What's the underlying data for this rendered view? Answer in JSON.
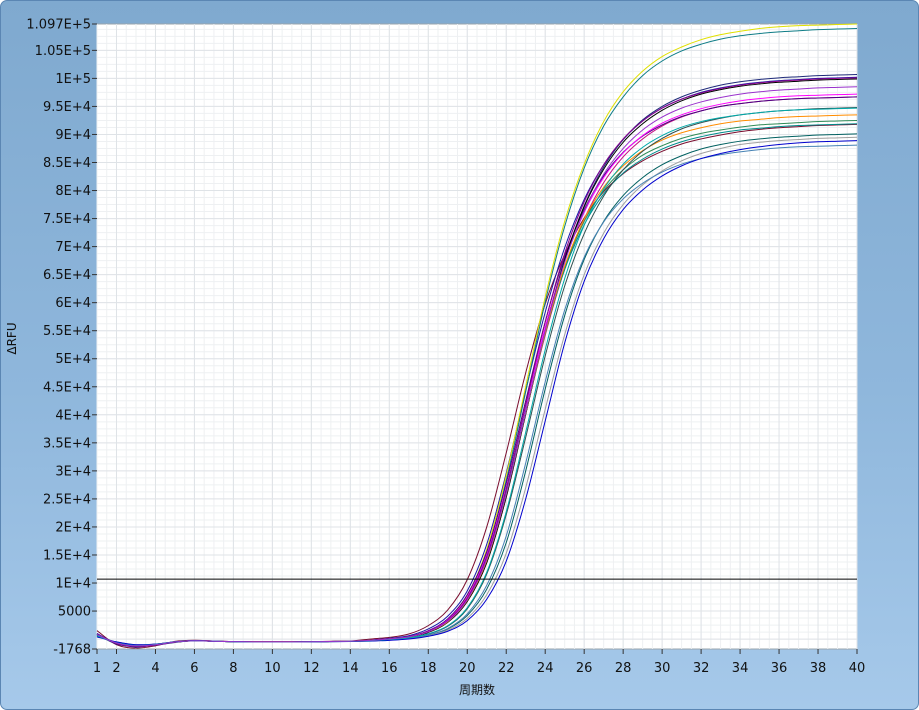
{
  "window": {
    "frame_color": "#7fa9cf"
  },
  "chart_data": {
    "type": "line",
    "title": "",
    "xlabel": "周期数",
    "ylabel": "ΔRFU",
    "xlim": [
      1,
      40
    ],
    "ylim": [
      -1768,
      109700
    ],
    "x_ticks": [
      1,
      2,
      4,
      6,
      8,
      10,
      12,
      14,
      16,
      18,
      20,
      22,
      24,
      26,
      28,
      30,
      32,
      34,
      36,
      38,
      40
    ],
    "x_tick_labels": [
      "1",
      "2",
      "4",
      "6",
      "8",
      "10",
      "12",
      "14",
      "16",
      "18",
      "20",
      "22",
      "24",
      "26",
      "28",
      "30",
      "32",
      "34",
      "36",
      "38",
      "40"
    ],
    "y_ticks": [
      -1768,
      5000,
      10000,
      15000,
      20000,
      25000,
      30000,
      35000,
      40000,
      45000,
      50000,
      55000,
      60000,
      65000,
      70000,
      75000,
      80000,
      85000,
      90000,
      95000,
      100000,
      105000,
      109700
    ],
    "y_tick_labels": [
      "-1768",
      "5000",
      "1E+4",
      "1.5E+4",
      "2E+4",
      "2.5E+4",
      "3E+4",
      "3.5E+4",
      "4E+4",
      "4.5E+4",
      "5E+4",
      "5.5E+4",
      "6E+4",
      "6.5E+4",
      "7E+4",
      "7.5E+4",
      "8E+4",
      "8.5E+4",
      "9E+4",
      "9.5E+4",
      "1E+5",
      "1.05E+5",
      "1.097E+5"
    ],
    "grid": true,
    "threshold": 10700,
    "x": [
      1,
      2,
      3,
      4,
      5,
      6,
      7,
      8,
      9,
      10,
      11,
      12,
      13,
      14,
      15,
      16,
      17,
      18,
      19,
      20,
      21,
      22,
      23,
      24,
      25,
      26,
      27,
      28,
      29,
      30,
      31,
      32,
      33,
      34,
      35,
      36,
      37,
      38,
      39,
      40
    ],
    "series": [
      {
        "color": "#7a0d2e",
        "values": [
          1500,
          -1000,
          -1600,
          -1200,
          -400,
          -200,
          -350,
          -450,
          -500,
          -500,
          -500,
          -450,
          -400,
          -350,
          0,
          300,
          900,
          2400,
          5200,
          10600,
          20000,
          33200,
          47500,
          59800,
          68600,
          75100,
          79800,
          83000,
          85300,
          87000,
          88300,
          89200,
          89900,
          90500,
          90900,
          91200,
          91400,
          91600,
          91700,
          91800
        ]
      },
      {
        "color": "#1a1aa8",
        "values": [
          1000,
          -800,
          -1400,
          -1000,
          -500,
          -300,
          -400,
          -450,
          -500,
          -500,
          -500,
          -480,
          -420,
          -380,
          -200,
          150,
          600,
          1800,
          4100,
          8600,
          16900,
          29600,
          44400,
          58300,
          69800,
          78400,
          84600,
          89100,
          92400,
          94700,
          96300,
          97500,
          98300,
          98900,
          99300,
          99600,
          99800,
          100000,
          100100,
          100200
        ]
      },
      {
        "color": "#1e2a7a",
        "values": [
          800,
          -900,
          -1300,
          -1100,
          -600,
          -300,
          -350,
          -450,
          -500,
          -500,
          -500,
          -470,
          -420,
          -380,
          -250,
          0,
          350,
          1200,
          3000,
          6700,
          13700,
          25400,
          40200,
          55000,
          67700,
          77300,
          84200,
          89100,
          92600,
          95000,
          96700,
          97900,
          98800,
          99400,
          99800,
          100100,
          100300,
          100500,
          100600,
          100700
        ]
      },
      {
        "color": "#c71585",
        "values": [
          600,
          -700,
          -1200,
          -900,
          -500,
          -250,
          -350,
          -450,
          -500,
          -500,
          -500,
          -460,
          -410,
          -370,
          -220,
          50,
          450,
          1400,
          3300,
          7200,
          14400,
          26000,
          40300,
          54200,
          66000,
          74900,
          81400,
          86000,
          89200,
          91500,
          93100,
          94200,
          95000,
          95500,
          95900,
          96200,
          96400,
          96500,
          96600,
          96700
        ]
      },
      {
        "color": "#e0e000",
        "values": [
          500,
          -600,
          -1100,
          -950,
          -550,
          -300,
          -380,
          -460,
          -500,
          -500,
          -500,
          -480,
          -430,
          -390,
          -240,
          30,
          420,
          1400,
          3500,
          7800,
          16000,
          29200,
          45100,
          61000,
          74500,
          84700,
          92300,
          97600,
          101300,
          103900,
          105600,
          106900,
          107800,
          108400,
          108900,
          109200,
          109400,
          109500,
          109600,
          109700
        ]
      },
      {
        "color": "#0e7c86",
        "values": [
          900,
          -800,
          -1300,
          -1000,
          -550,
          -300,
          -380,
          -460,
          -500,
          -500,
          -500,
          -480,
          -430,
          -390,
          -240,
          20,
          400,
          1300,
          3300,
          7400,
          15300,
          28300,
          44100,
          60100,
          73600,
          84000,
          91500,
          96700,
          100500,
          103100,
          104900,
          106100,
          107000,
          107600,
          108000,
          108300,
          108500,
          108700,
          108800,
          108900
        ]
      },
      {
        "color": "#006060",
        "values": [
          700,
          -600,
          -1200,
          -900,
          -500,
          -300,
          -400,
          -470,
          -510,
          -510,
          -510,
          -490,
          -450,
          -410,
          -320,
          -150,
          100,
          700,
          1800,
          4200,
          8900,
          17200,
          30000,
          44600,
          57700,
          67700,
          74500,
          79100,
          82300,
          84600,
          86200,
          87400,
          88200,
          88800,
          89200,
          89500,
          89700,
          89900,
          90000,
          90100
        ]
      },
      {
        "color": "#a0a0a0",
        "values": [
          400,
          -500,
          -1000,
          -900,
          -500,
          -280,
          -380,
          -460,
          -510,
          -510,
          -510,
          -490,
          -450,
          -420,
          -330,
          -170,
          60,
          600,
          1600,
          3700,
          7900,
          15300,
          27000,
          41000,
          54300,
          65000,
          72400,
          77500,
          81000,
          83500,
          85300,
          86600,
          87500,
          88200,
          88600,
          88900,
          89100,
          89300,
          89400,
          89500
        ]
      },
      {
        "color": "#008b8b",
        "values": [
          600,
          -700,
          -1200,
          -1000,
          -500,
          -280,
          -380,
          -460,
          -500,
          -500,
          -500,
          -470,
          -420,
          -380,
          -230,
          40,
          420,
          1400,
          3300,
          7300,
          14600,
          26400,
          40800,
          54700,
          65900,
          73900,
          79400,
          83100,
          85600,
          87400,
          88700,
          89600,
          90300,
          90800,
          91100,
          91400,
          91600,
          91700,
          91800,
          91900
        ]
      },
      {
        "color": "#4b0082",
        "values": [
          900,
          -800,
          -1300,
          -1050,
          -550,
          -300,
          -380,
          -460,
          -500,
          -500,
          -500,
          -470,
          -420,
          -380,
          -220,
          60,
          460,
          1500,
          3600,
          7900,
          15600,
          27800,
          42500,
          56600,
          68200,
          76600,
          82600,
          86800,
          89700,
          91700,
          93200,
          94200,
          95000,
          95500,
          95900,
          96200,
          96400,
          96500,
          96600,
          96700
        ]
      },
      {
        "color": "#ff00ff",
        "values": [
          500,
          -600,
          -1100,
          -950,
          -500,
          -280,
          -380,
          -460,
          -500,
          -500,
          -500,
          -470,
          -420,
          -380,
          -230,
          40,
          430,
          1400,
          3400,
          7500,
          15000,
          27000,
          41500,
          55600,
          67400,
          76100,
          82300,
          86700,
          89800,
          92000,
          93500,
          94600,
          95400,
          96000,
          96400,
          96700,
          96900,
          97000,
          97100,
          97200
        ]
      },
      {
        "color": "#2e8b57",
        "values": [
          700,
          -700,
          -1200,
          -1000,
          -520,
          -290,
          -380,
          -460,
          -500,
          -500,
          -500,
          -470,
          -420,
          -380,
          -240,
          20,
          380,
          1300,
          3100,
          6900,
          14000,
          25700,
          40200,
          54500,
          66200,
          74500,
          80000,
          83700,
          86300,
          88000,
          89300,
          90200,
          90800,
          91300,
          91700,
          91900,
          92100,
          92300,
          92400,
          92500
        ]
      },
      {
        "color": "#000000",
        "values": [
          800,
          -750,
          -1250,
          -1000,
          -540,
          -300,
          -390,
          -470,
          -510,
          -510,
          -510,
          -480,
          -430,
          -390,
          -260,
          0,
          350,
          1200,
          3000,
          6700,
          13600,
          25300,
          40100,
          54900,
          67600,
          77100,
          83800,
          88600,
          91900,
          94300,
          96000,
          97200,
          98000,
          98600,
          99000,
          99300,
          99500,
          99700,
          99800,
          99900
        ]
      },
      {
        "color": "#ff8c00",
        "values": [
          600,
          -650,
          -1150,
          -950,
          -510,
          -290,
          -380,
          -460,
          -500,
          -500,
          -500,
          -470,
          -420,
          -380,
          -240,
          20,
          380,
          1300,
          3100,
          6900,
          14000,
          25800,
          40400,
          54700,
          66500,
          74900,
          80600,
          84400,
          87100,
          89000,
          90300,
          91200,
          91900,
          92400,
          92700,
          93000,
          93200,
          93300,
          93400,
          93500
        ]
      },
      {
        "color": "#2f4f4f",
        "values": [
          700,
          -700,
          -1200,
          -1000,
          -520,
          -290,
          -380,
          -460,
          -510,
          -510,
          -510,
          -480,
          -440,
          -400,
          -300,
          -100,
          200,
          900,
          2300,
          5400,
          11600,
          22200,
          36000,
          50500,
          63000,
          72300,
          79000,
          83700,
          87000,
          89300,
          91000,
          92100,
          92900,
          93500,
          93900,
          94200,
          94400,
          94600,
          94700,
          94800
        ]
      },
      {
        "color": "#4682b4",
        "values": [
          500,
          -600,
          -1100,
          -900,
          -500,
          -280,
          -380,
          -460,
          -510,
          -510,
          -510,
          -490,
          -450,
          -410,
          -320,
          -140,
          120,
          750,
          1900,
          4500,
          9600,
          18400,
          31400,
          45900,
          58700,
          68100,
          74400,
          78500,
          81300,
          83300,
          84700,
          85700,
          86400,
          86900,
          87300,
          87600,
          87800,
          87900,
          88000,
          88100
        ]
      },
      {
        "color": "#8b008b",
        "values": [
          900,
          -800,
          -1300,
          -1050,
          -540,
          -300,
          -380,
          -460,
          -500,
          -500,
          -500,
          -470,
          -420,
          -380,
          -230,
          40,
          430,
          1400,
          3300,
          7300,
          14700,
          26800,
          41800,
          56500,
          68800,
          78000,
          84600,
          89200,
          92400,
          94700,
          96300,
          97400,
          98200,
          98800,
          99200,
          99500,
          99700,
          99900,
          100000,
          100100
        ]
      },
      {
        "color": "#0000cd",
        "values": [
          400,
          -500,
          -1000,
          -900,
          -500,
          -280,
          -380,
          -460,
          -510,
          -510,
          -510,
          -490,
          -460,
          -430,
          -360,
          -220,
          10,
          500,
          1400,
          3300,
          7100,
          13900,
          25000,
          38900,
          52800,
          63800,
          71400,
          76600,
          80100,
          82600,
          84400,
          85700,
          86600,
          87300,
          87800,
          88200,
          88500,
          88700,
          88800,
          88900
        ]
      },
      {
        "color": "#00aaaa",
        "values": [
          600,
          -650,
          -1150,
          -950,
          -520,
          -300,
          -390,
          -470,
          -510,
          -510,
          -510,
          -480,
          -440,
          -400,
          -290,
          -80,
          230,
          950,
          2400,
          5600,
          11900,
          22700,
          36900,
          51600,
          64300,
          73800,
          80300,
          84700,
          87700,
          89800,
          91300,
          92300,
          93000,
          93500,
          93900,
          94200,
          94400,
          94500,
          94600,
          94700
        ]
      },
      {
        "color": "#9932cc",
        "values": [
          800,
          -700,
          -1200,
          -1000,
          -520,
          -290,
          -380,
          -460,
          -500,
          -500,
          -500,
          -470,
          -420,
          -380,
          -240,
          20,
          390,
          1300,
          3200,
          7000,
          14200,
          25900,
          40500,
          55000,
          67200,
          76300,
          82900,
          87500,
          90800,
          93100,
          94700,
          95800,
          96600,
          97200,
          97600,
          97900,
          98100,
          98300,
          98400,
          98500
        ]
      }
    ]
  }
}
